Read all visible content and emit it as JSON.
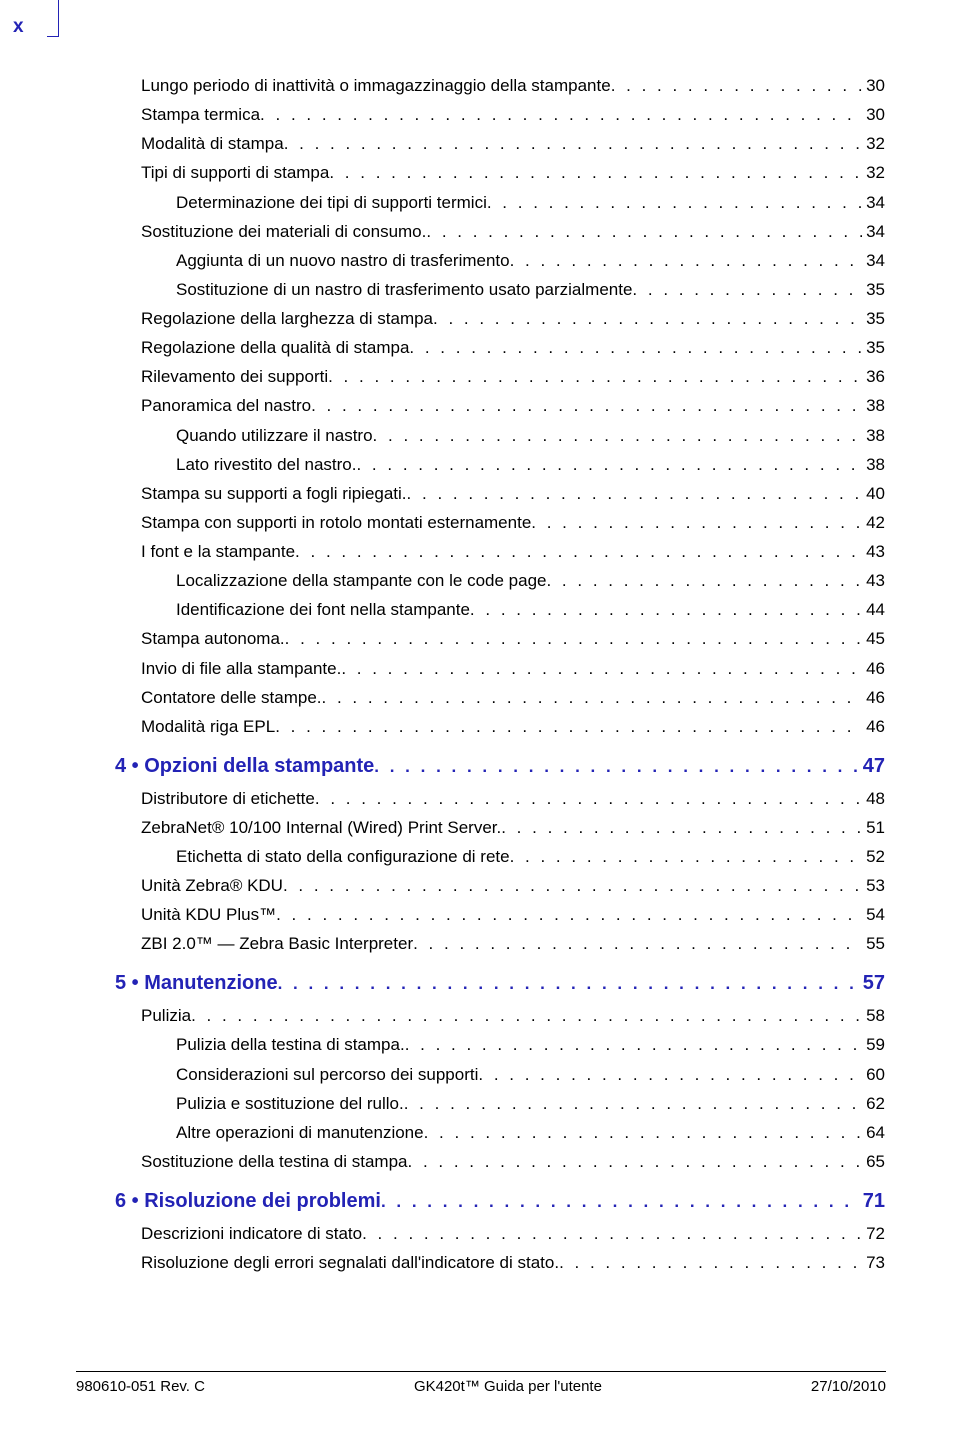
{
  "page_marker": "x",
  "toc": [
    {
      "type": "item",
      "indent": 0,
      "label": "Lungo periodo di inattività o immagazzinaggio della stampante",
      "page": "30"
    },
    {
      "type": "item",
      "indent": 0,
      "label": "Stampa termica",
      "page": "30"
    },
    {
      "type": "item",
      "indent": 0,
      "label": "Modalità di stampa",
      "page": "32"
    },
    {
      "type": "item",
      "indent": 0,
      "label": "Tipi di supporti di stampa",
      "page": "32"
    },
    {
      "type": "item",
      "indent": 1,
      "label": "Determinazione dei tipi di supporti termici",
      "page": "34"
    },
    {
      "type": "item",
      "indent": 0,
      "label": "Sostituzione dei materiali di consumo.",
      "page": "34"
    },
    {
      "type": "item",
      "indent": 1,
      "label": "Aggiunta di un nuovo nastro di trasferimento",
      "page": "34"
    },
    {
      "type": "item",
      "indent": 1,
      "label": "Sostituzione di un nastro di trasferimento usato parzialmente",
      "page": "35"
    },
    {
      "type": "item",
      "indent": 0,
      "label": "Regolazione della larghezza di stampa",
      "page": "35"
    },
    {
      "type": "item",
      "indent": 0,
      "label": "Regolazione della qualità di stampa",
      "page": "35"
    },
    {
      "type": "item",
      "indent": 0,
      "label": "Rilevamento dei supporti",
      "page": "36"
    },
    {
      "type": "item",
      "indent": 0,
      "label": "Panoramica del nastro",
      "page": "38"
    },
    {
      "type": "item",
      "indent": 1,
      "label": "Quando utilizzare il nastro",
      "page": "38"
    },
    {
      "type": "item",
      "indent": 1,
      "label": "Lato rivestito del nastro.",
      "page": "38"
    },
    {
      "type": "item",
      "indent": 0,
      "label": "Stampa su supporti a fogli ripiegati.",
      "page": "40"
    },
    {
      "type": "item",
      "indent": 0,
      "label": "Stampa con supporti in rotolo montati esternamente",
      "page": "42"
    },
    {
      "type": "item",
      "indent": 0,
      "label": "I font e la stampante",
      "page": "43"
    },
    {
      "type": "item",
      "indent": 1,
      "label": "Localizzazione della stampante con le code page",
      "page": "43"
    },
    {
      "type": "item",
      "indent": 1,
      "label": "Identificazione dei font nella stampante",
      "page": "44"
    },
    {
      "type": "item",
      "indent": 0,
      "label": "Stampa autonoma.",
      "page": "45"
    },
    {
      "type": "item",
      "indent": 0,
      "label": "Invio di file alla stampante.",
      "page": "46"
    },
    {
      "type": "item",
      "indent": 0,
      "label": "Contatore delle stampe.",
      "page": "46"
    },
    {
      "type": "item",
      "indent": 0,
      "label": "Modalità riga EPL",
      "page": "46"
    },
    {
      "type": "chapter",
      "label": "4 • Opzioni della stampante",
      "page": "47"
    },
    {
      "type": "item",
      "indent": 0,
      "label": "Distributore di etichette",
      "page": "48"
    },
    {
      "type": "item",
      "indent": 0,
      "label": "ZebraNet® 10/100 Internal (Wired) Print Server.",
      "page": "51"
    },
    {
      "type": "item",
      "indent": 1,
      "label": "Etichetta di stato della configurazione di rete",
      "page": "52"
    },
    {
      "type": "item",
      "indent": 0,
      "label": "Unità Zebra® KDU",
      "page": "53"
    },
    {
      "type": "item",
      "indent": 0,
      "label": "Unità KDU Plus™",
      "page": "54"
    },
    {
      "type": "item",
      "indent": 0,
      "label": "ZBI 2.0™ — Zebra Basic Interpreter",
      "page": "55"
    },
    {
      "type": "chapter",
      "label": "5 • Manutenzione",
      "page": "57"
    },
    {
      "type": "item",
      "indent": 0,
      "label": "Pulizia",
      "page": "58"
    },
    {
      "type": "item",
      "indent": 1,
      "label": "Pulizia della testina di stampa.",
      "page": "59"
    },
    {
      "type": "item",
      "indent": 1,
      "label": "Considerazioni sul percorso dei supporti",
      "page": "60"
    },
    {
      "type": "item",
      "indent": 1,
      "label": "Pulizia e sostituzione del rullo.",
      "page": "62"
    },
    {
      "type": "item",
      "indent": 1,
      "label": "Altre operazioni di manutenzione",
      "page": "64"
    },
    {
      "type": "item",
      "indent": 0,
      "label": "Sostituzione della testina di stampa",
      "page": "65"
    },
    {
      "type": "chapter",
      "label": "6 • Risoluzione dei problemi",
      "page": "71"
    },
    {
      "type": "item",
      "indent": 0,
      "label": "Descrizioni indicatore di stato",
      "page": "72"
    },
    {
      "type": "item",
      "indent": 0,
      "label": "Risoluzione degli errori segnalati dall'indicatore di stato.",
      "page": "73"
    }
  ],
  "footer": {
    "left": "980610-051 Rev. C",
    "center": "GK420t™ Guida per l'utente",
    "right": "27/10/2010"
  }
}
